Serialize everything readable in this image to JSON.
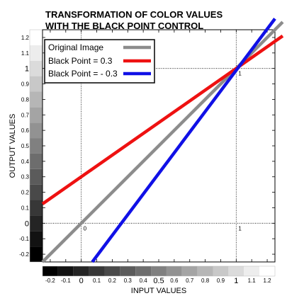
{
  "chart_data": {
    "type": "line",
    "title_lines": [
      "TRANSFORMATION OF COLOR VALUES",
      "WITH THE BLACK POINT CONTROL"
    ],
    "xlabel": "INPUT VALUES",
    "ylabel": "OUTPUT VALUES",
    "xlim": [
      -0.25,
      1.25
    ],
    "ylim": [
      -0.25,
      1.25
    ],
    "x_ticks": [
      {
        "value": -0.2,
        "label": "-0.2",
        "big": false
      },
      {
        "value": -0.1,
        "label": "-0.1",
        "big": false
      },
      {
        "value": 0,
        "label": "0",
        "big": true
      },
      {
        "value": 0.1,
        "label": "0.1",
        "big": false
      },
      {
        "value": 0.2,
        "label": "0.2",
        "big": false
      },
      {
        "value": 0.3,
        "label": "0.3",
        "big": false
      },
      {
        "value": 0.4,
        "label": "0.4",
        "big": false
      },
      {
        "value": 0.5,
        "label": "0.5",
        "big": true
      },
      {
        "value": 0.6,
        "label": "0.6",
        "big": false
      },
      {
        "value": 0.7,
        "label": "0.7",
        "big": false
      },
      {
        "value": 0.8,
        "label": "0.8",
        "big": false
      },
      {
        "value": 0.9,
        "label": "0.9",
        "big": false
      },
      {
        "value": 1,
        "label": "1",
        "big": true
      },
      {
        "value": 1.1,
        "label": "1.1",
        "big": false
      },
      {
        "value": 1.2,
        "label": "1.2",
        "big": false
      }
    ],
    "y_ticks": [
      {
        "value": -0.2,
        "label": "-0.2",
        "big": false
      },
      {
        "value": -0.1,
        "label": "-0.1",
        "big": false
      },
      {
        "value": 0,
        "label": "0",
        "big": true
      },
      {
        "value": 0.1,
        "label": "0.1",
        "big": false
      },
      {
        "value": 0.2,
        "label": "0.2",
        "big": false
      },
      {
        "value": 0.3,
        "label": "0.3",
        "big": false
      },
      {
        "value": 0.4,
        "label": "0.4",
        "big": false
      },
      {
        "value": 0.5,
        "label": "0.5",
        "big": false
      },
      {
        "value": 0.6,
        "label": "0.6",
        "big": false
      },
      {
        "value": 0.7,
        "label": "0.7",
        "big": false
      },
      {
        "value": 0.8,
        "label": "0.8",
        "big": false
      },
      {
        "value": 0.9,
        "label": "0.9",
        "big": false
      },
      {
        "value": 1,
        "label": "1",
        "big": true
      },
      {
        "value": 1.1,
        "label": "1.1",
        "big": false
      },
      {
        "value": 1.2,
        "label": "1.2",
        "big": false
      }
    ],
    "series": [
      {
        "name": "Original Image",
        "color": "#8c8c8c",
        "x": [
          -0.25,
          1.3
        ],
        "y": [
          -0.25,
          1.3
        ]
      },
      {
        "name": "Black Point = 0.3",
        "color": "#ee1111",
        "x": [
          -0.25,
          1.3
        ],
        "y": [
          0.125,
          1.21
        ]
      },
      {
        "name": "Black Point = - 0.3",
        "color": "#1010e6",
        "x": [
          0.0714,
          1.25
        ],
        "y": [
          -0.25,
          1.3214
        ]
      }
    ],
    "reference_lines": {
      "x": [
        0,
        1
      ],
      "y": [
        0,
        1
      ],
      "style": "dotted"
    },
    "annotations": [
      {
        "x": 0,
        "y": 0,
        "text": "0"
      },
      {
        "x": 1,
        "y": 0,
        "text": "1"
      },
      {
        "x": 1,
        "y": 1,
        "text": "1"
      }
    ],
    "legend": "top-left",
    "grayscale_ramps": true,
    "grid": false
  }
}
